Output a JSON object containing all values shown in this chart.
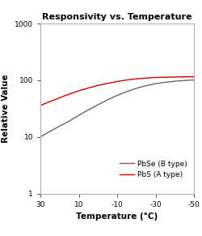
{
  "title": "Responsivity vs. Temperature",
  "xlabel": "Temperature (°C)",
  "ylabel": "Relative Value",
  "xlim": [
    30,
    -50
  ],
  "xticks": [
    30,
    10,
    -10,
    -30,
    -50
  ],
  "ylim": [
    1,
    1000
  ],
  "background_color": "#ffffff",
  "pbse_x": [
    30,
    25,
    20,
    15,
    10,
    5,
    0,
    -5,
    -10,
    -15,
    -20,
    -25,
    -30,
    -35,
    -40,
    -45,
    -50
  ],
  "pbse_y": [
    10,
    12.5,
    15.5,
    19,
    24,
    30,
    37,
    45,
    54,
    63,
    72,
    80,
    87,
    92,
    96,
    99,
    101
  ],
  "pbs_x": [
    30,
    25,
    20,
    15,
    10,
    5,
    0,
    -5,
    -10,
    -15,
    -20,
    -25,
    -30,
    -35,
    -40,
    -45,
    -50
  ],
  "pbs_y": [
    36,
    42,
    49,
    57,
    65,
    73,
    81,
    88,
    95,
    101,
    106,
    109,
    112,
    113,
    114,
    115,
    115
  ],
  "pbse_color": "#666666",
  "pbs_color": "#cc0000",
  "legend_pbse": "PbSe (B type)",
  "legend_pbs": "PbS (A type)",
  "title_fontsize": 8,
  "label_fontsize": 7.5,
  "tick_fontsize": 6.5,
  "legend_fontsize": 6.5,
  "spine_color": "#aaaaaa"
}
